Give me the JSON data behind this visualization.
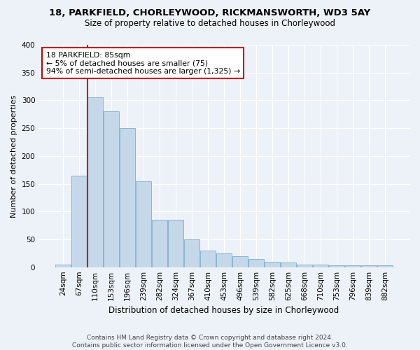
{
  "title1": "18, PARKFIELD, CHORLEYWOOD, RICKMANSWORTH, WD3 5AY",
  "title2": "Size of property relative to detached houses in Chorleywood",
  "xlabel": "Distribution of detached houses by size in Chorleywood",
  "ylabel": "Number of detached properties",
  "categories": [
    "24sqm",
    "67sqm",
    "110sqm",
    "153sqm",
    "196sqm",
    "239sqm",
    "282sqm",
    "324sqm",
    "367sqm",
    "410sqm",
    "453sqm",
    "496sqm",
    "539sqm",
    "582sqm",
    "625sqm",
    "668sqm",
    "710sqm",
    "753sqm",
    "796sqm",
    "839sqm",
    "882sqm"
  ],
  "values": [
    5,
    165,
    305,
    280,
    250,
    155,
    85,
    85,
    50,
    30,
    25,
    20,
    15,
    10,
    8,
    5,
    5,
    3,
    3,
    3,
    3
  ],
  "bar_color": "#c5d8ea",
  "bar_edge_color": "#8ab4d0",
  "bg_color": "#edf2f8",
  "vline_color": "#cc0000",
  "vline_x_index": 1.5,
  "annotation_text": "18 PARKFIELD: 85sqm\n← 5% of detached houses are smaller (75)\n94% of semi-detached houses are larger (1,325) →",
  "annotation_box_facecolor": "#ffffff",
  "annotation_box_edgecolor": "#cc0000",
  "footer_text": "Contains HM Land Registry data © Crown copyright and database right 2024.\nContains public sector information licensed under the Open Government Licence v3.0.",
  "ylim": [
    0,
    400
  ],
  "yticks": [
    0,
    50,
    100,
    150,
    200,
    250,
    300,
    350,
    400
  ]
}
